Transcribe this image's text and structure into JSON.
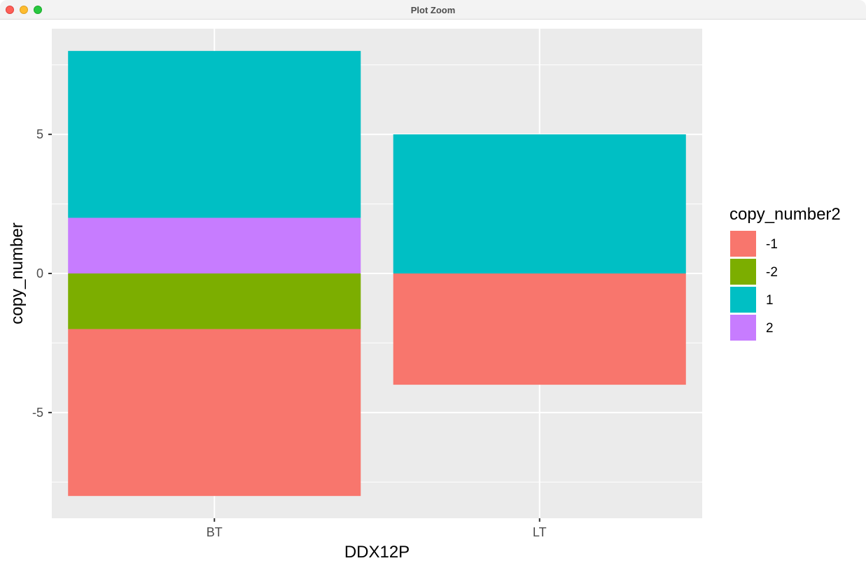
{
  "window": {
    "title": "Plot Zoom"
  },
  "chart_data": {
    "type": "bar",
    "stacked": true,
    "categories": [
      "BT",
      "LT"
    ],
    "series": [
      {
        "name": "-1",
        "color": "#F8766D",
        "values": [
          -6,
          -4
        ]
      },
      {
        "name": "-2",
        "color": "#7CAE00",
        "values": [
          -2,
          0
        ]
      },
      {
        "name": "1",
        "color": "#00BFC4",
        "values": [
          6,
          5
        ]
      },
      {
        "name": "2",
        "color": "#C77CFF",
        "values": [
          2,
          0
        ]
      }
    ],
    "stack_order": [
      "2",
      "1",
      "-2",
      "-1"
    ],
    "xlabel": "DDX12P",
    "ylabel": "copy_number",
    "ylim": [
      -8.8,
      8.8
    ],
    "yticks": [
      -5,
      0,
      5
    ],
    "ytick_labels": [
      "-5",
      "0",
      "5"
    ],
    "legend": {
      "title": "copy_number2",
      "position": "right"
    },
    "panel_background": "#EBEBEB",
    "grid": true
  }
}
